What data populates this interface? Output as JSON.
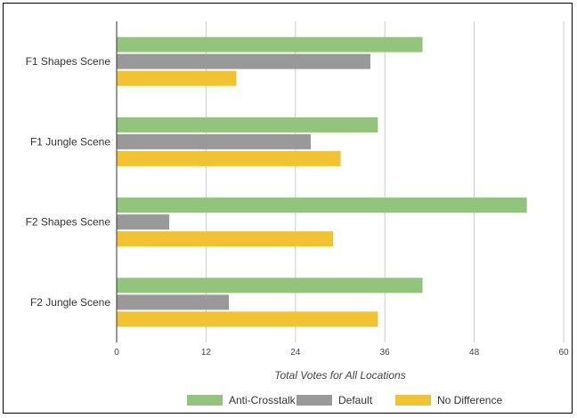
{
  "chart_data": {
    "type": "bar",
    "orientation": "horizontal",
    "title": "",
    "categories": [
      "F1 Shapes Scene",
      "F1 Jungle Scene",
      "F2 Shapes Scene",
      "F2 Jungle Scene"
    ],
    "series": [
      {
        "name": "Anti-Crosstalk",
        "values": [
          41,
          35,
          55,
          41
        ],
        "color": "#92c47d"
      },
      {
        "name": "Default",
        "values": [
          34,
          26,
          7,
          15
        ],
        "color": "#999999"
      },
      {
        "name": "No Difference",
        "values": [
          16,
          30,
          29,
          35
        ],
        "color": "#f1c232"
      }
    ],
    "xlabel": "Total Votes for All Locations",
    "ylabel": "",
    "xlim": [
      0,
      60
    ],
    "xticks": [
      "0",
      "12",
      "24",
      "36",
      "48",
      "60"
    ],
    "grid": true,
    "legend": "bottom"
  }
}
